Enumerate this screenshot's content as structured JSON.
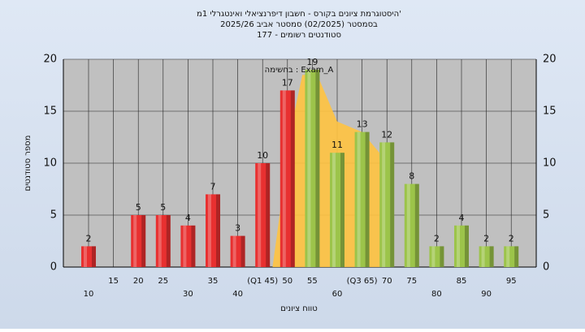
{
  "chart_data": {
    "type": "bar",
    "title": "היסטוגרמת ציונים בקורס - חשבון דיפרנציאלי ואינטגרלי 1מ'",
    "subtitle": "בסמסטר (02/2025)  סמסטר אביב 2025/26",
    "subtitle2": "סטודנטים רשומים - 177",
    "annotation": "בחשימה : Exam_A",
    "x_label": "טווח ציונים",
    "y_label": "מספר סטודנטים",
    "categories": [
      "10",
      "15",
      "20",
      "25",
      "30",
      "35",
      "40",
      "(Q1 45)",
      "50",
      "55",
      "60",
      "(Q3 65)",
      "70",
      "75",
      "80",
      "85",
      "90",
      "95"
    ],
    "values": [
      2,
      null,
      5,
      5,
      4,
      7,
      3,
      10,
      17,
      19,
      11,
      13,
      12,
      8,
      2,
      4,
      2,
      2
    ],
    "colors": [
      "#e83030",
      "#e83030",
      "#e83030",
      "#e83030",
      "#e83030",
      "#e83030",
      "#e83030",
      "#e83030",
      "#e83030",
      "#9cc44a",
      "#9cc44a",
      "#9cc44a",
      "#9cc44a",
      "#9cc44a",
      "#9cc44a",
      "#9cc44a",
      "#9cc44a",
      "#9cc44a"
    ],
    "area": {
      "color": "#ffc340",
      "x": [
        47,
        51,
        53,
        56,
        60,
        65,
        68.5,
        69.5
      ],
      "y": [
        0,
        14,
        18.5,
        18.5,
        14,
        13,
        11,
        0
      ]
    },
    "ylim": [
      0,
      20
    ],
    "yticks": [
      0,
      5,
      10,
      15,
      20
    ],
    "grid": true
  }
}
